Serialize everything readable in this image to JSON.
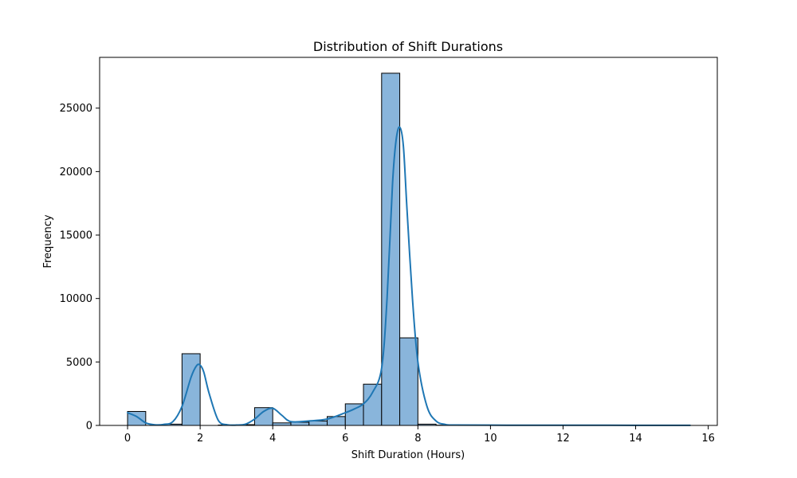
{
  "chart_data": {
    "type": "histogram",
    "title": "Distribution of Shift Durations",
    "xlabel": "Shift Duration (Hours)",
    "ylabel": "Frequency",
    "xlim": [
      -0.77,
      16.25
    ],
    "ylim": [
      0,
      29000
    ],
    "x_ticks": [
      0,
      2,
      4,
      6,
      8,
      10,
      12,
      14,
      16
    ],
    "y_ticks": [
      0,
      5000,
      10000,
      15000,
      20000,
      25000
    ],
    "bin_width": 0.5,
    "bins": [
      {
        "x0": 0.0,
        "x1": 0.5,
        "count": 1100
      },
      {
        "x0": 0.5,
        "x1": 1.0,
        "count": 0
      },
      {
        "x0": 1.0,
        "x1": 1.5,
        "count": 100
      },
      {
        "x0": 1.5,
        "x1": 2.0,
        "count": 5650
      },
      {
        "x0": 2.0,
        "x1": 2.5,
        "count": 0
      },
      {
        "x0": 2.5,
        "x1": 3.0,
        "count": 30
      },
      {
        "x0": 3.0,
        "x1": 3.5,
        "count": 60
      },
      {
        "x0": 3.5,
        "x1": 4.0,
        "count": 1400
      },
      {
        "x0": 4.0,
        "x1": 4.5,
        "count": 200
      },
      {
        "x0": 4.5,
        "x1": 5.0,
        "count": 250
      },
      {
        "x0": 5.0,
        "x1": 5.5,
        "count": 350
      },
      {
        "x0": 5.5,
        "x1": 6.0,
        "count": 700
      },
      {
        "x0": 6.0,
        "x1": 6.5,
        "count": 1700
      },
      {
        "x0": 6.5,
        "x1": 7.0,
        "count": 3250
      },
      {
        "x0": 7.0,
        "x1": 7.5,
        "count": 27750
      },
      {
        "x0": 7.5,
        "x1": 8.0,
        "count": 6900
      },
      {
        "x0": 8.0,
        "x1": 8.5,
        "count": 100
      },
      {
        "x0": 8.5,
        "x1": 9.0,
        "count": 20
      }
    ],
    "kde": {
      "x": [
        0.0,
        0.25,
        0.5,
        0.75,
        1.0,
        1.25,
        1.5,
        1.75,
        1.9,
        2.0,
        2.1,
        2.25,
        2.5,
        2.75,
        3.0,
        3.25,
        3.5,
        3.75,
        4.0,
        4.25,
        4.5,
        5.0,
        5.5,
        6.0,
        6.25,
        6.5,
        6.75,
        7.0,
        7.15,
        7.3,
        7.4,
        7.5,
        7.6,
        7.7,
        7.85,
        8.0,
        8.25,
        8.5,
        8.75,
        9.0,
        10.0,
        12.0,
        14.0,
        15.5
      ],
      "y": [
        1000,
        700,
        200,
        50,
        80,
        300,
        1500,
        3800,
        4700,
        4750,
        4200,
        2500,
        400,
        50,
        30,
        100,
        500,
        1100,
        1350,
        800,
        300,
        350,
        500,
        1000,
        1300,
        1700,
        2600,
        4500,
        10000,
        19000,
        22500,
        23500,
        22000,
        17000,
        10000,
        5000,
        1500,
        350,
        80,
        30,
        20,
        15,
        10,
        5
      ]
    },
    "bar_color": "#89b5db",
    "bar_edge_color": "#000000",
    "line_color": "#1f77b4",
    "grid": false,
    "legend": "none"
  }
}
